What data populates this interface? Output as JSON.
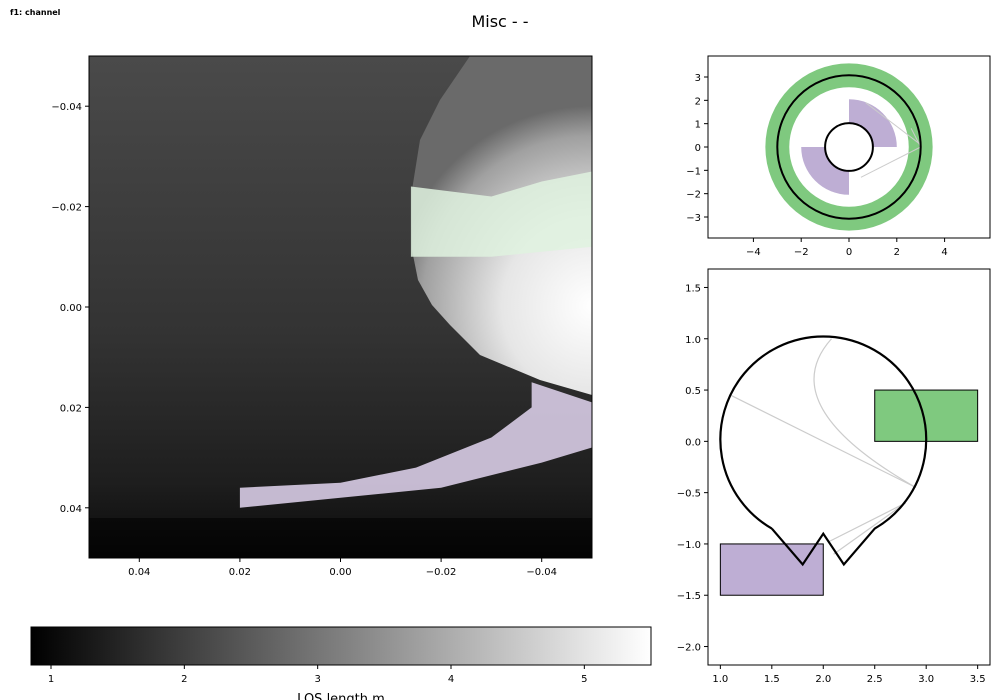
{
  "figure": {
    "corner_label": "f1: channel",
    "title": "Misc -  -"
  },
  "colors": {
    "green": "#7fc97f",
    "purple": "#beaed4",
    "green_light": "#dff2df",
    "purple_light": "#d8cce6",
    "line": "#000000",
    "thin_line": "#cccccc"
  },
  "chart_data": [
    {
      "id": "los-image",
      "type": "heatmap",
      "title": "",
      "xlabel": "",
      "ylabel": "",
      "xlim": [
        0.05,
        -0.05
      ],
      "ylim": [
        -0.05,
        0.05
      ],
      "xticks": [
        0.04,
        0.02,
        0.0,
        -0.02,
        -0.04
      ],
      "xtick_labels": [
        "0.04",
        "0.02",
        "0.00",
        "−0.02",
        "−0.04"
      ],
      "yticks": [
        -0.04,
        -0.02,
        0.0,
        0.02,
        0.04
      ],
      "ytick_labels": [
        "−0.04",
        "−0.02",
        "0.00",
        "0.02",
        "0.04"
      ],
      "colormap": "gray",
      "bright_region_center": [
        -0.05,
        0.0
      ],
      "green_band": {
        "y": [
          -0.027,
          -0.01
        ],
        "x": [
          -0.014,
          -0.05
        ]
      },
      "purple_band": {
        "y_top": [
          0.038,
          0.02
        ],
        "y_bottom": [
          0.041,
          0.028
        ],
        "x": [
          0.02,
          -0.05
        ]
      }
    },
    {
      "id": "los-colorbar",
      "type": "colorbar",
      "range": [
        0.85,
        5.5
      ],
      "ticks": [
        1,
        2,
        3,
        4,
        5
      ],
      "tick_labels": [
        "1",
        "2",
        "3",
        "4",
        "5"
      ],
      "label": "LOS length m"
    },
    {
      "id": "top-view",
      "type": "geometry",
      "xlim": [
        -5.9,
        5.9
      ],
      "ylim": [
        -3.9,
        3.9
      ],
      "xticks": [
        -4,
        -2,
        0,
        2,
        4
      ],
      "xtick_labels": [
        "−4",
        "−2",
        "0",
        "2",
        "4"
      ],
      "yticks": [
        -3,
        -2,
        -1,
        0,
        1,
        2,
        3
      ],
      "ytick_labels": [
        "−3",
        "−2",
        "−1",
        "0",
        "1",
        "2",
        "3"
      ],
      "green_annulus": {
        "r_inner": 2.5,
        "r_outer": 3.5
      },
      "outer_circle_r": 3.0,
      "inner_circle_r": 1.0,
      "purple_wedges": [
        {
          "r_inner": 0.0,
          "r_outer": 2.0,
          "theta": [
            0,
            90
          ]
        },
        {
          "r_inner": 0.0,
          "r_outer": 2.0,
          "theta": [
            180,
            270
          ]
        }
      ]
    },
    {
      "id": "poloidal-view",
      "type": "geometry",
      "xlim": [
        0.88,
        3.62
      ],
      "ylim": [
        -2.18,
        1.68
      ],
      "xticks": [
        1.0,
        1.5,
        2.0,
        2.5,
        3.0,
        3.5
      ],
      "xtick_labels": [
        "1.0",
        "1.5",
        "2.0",
        "2.5",
        "3.0",
        "3.5"
      ],
      "yticks": [
        -2.0,
        -1.5,
        -1.0,
        -0.5,
        0.0,
        0.5,
        1.0,
        1.5
      ],
      "ytick_labels": [
        "−2.0",
        "−1.5",
        "−1.0",
        "−0.5",
        "0.0",
        "0.5",
        "1.0",
        "1.5"
      ],
      "green_rect": {
        "x": [
          2.5,
          3.5
        ],
        "y": [
          0.0,
          0.5
        ]
      },
      "purple_rect": {
        "x": [
          1.0,
          2.0
        ],
        "y": [
          -1.5,
          -1.0
        ]
      },
      "vessel_outline": [
        [
          1.5,
          -0.85
        ],
        [
          1.8,
          -1.2
        ],
        [
          2.0,
          -0.9
        ],
        [
          2.2,
          -1.2
        ],
        [
          2.5,
          -0.85
        ]
      ],
      "vessel_circle": {
        "center": [
          2.0,
          0.0
        ],
        "radius": 1.0
      }
    }
  ]
}
